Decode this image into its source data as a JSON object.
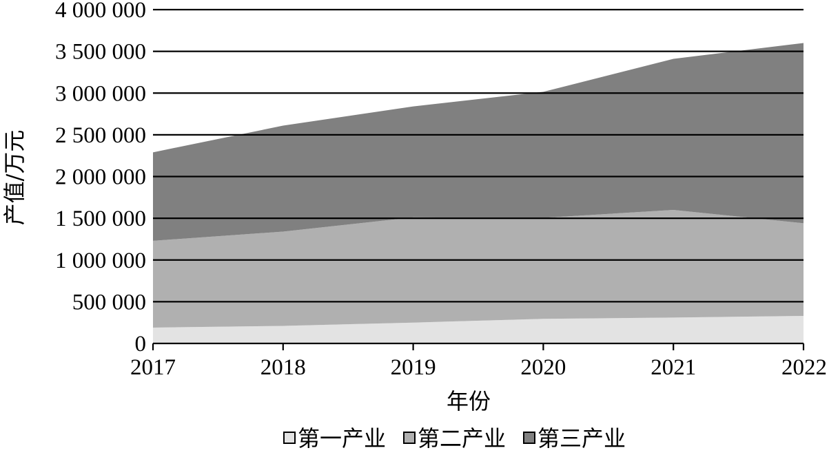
{
  "chart_data": {
    "type": "area",
    "stacked": true,
    "title": "",
    "xlabel": "年份",
    "ylabel": "产值/万元",
    "categories": [
      "2017",
      "2018",
      "2019",
      "2020",
      "2021",
      "2022"
    ],
    "ylim": [
      0,
      4000000
    ],
    "yticks": [
      0,
      500000,
      1000000,
      1500000,
      2000000,
      2500000,
      3000000,
      3500000,
      4000000
    ],
    "ytick_labels": [
      "0",
      "500 000",
      "1 000 000",
      "1 500 000",
      "2 000 000",
      "2 500 000",
      "3 000 000",
      "3 500 000",
      "4 000 000"
    ],
    "grid": "horizontal",
    "legend_position": "bottom",
    "series": [
      {
        "name": "第一产业",
        "color": "#e3e3e3",
        "values": [
          190000,
          210000,
          250000,
          295000,
          310000,
          330000
        ]
      },
      {
        "name": "第二产业",
        "color": "#b0b0b0",
        "values": [
          1040000,
          1130000,
          1260000,
          1210000,
          1290000,
          1110000
        ]
      },
      {
        "name": "第三产业",
        "color": "#808080",
        "values": [
          1060000,
          1270000,
          1330000,
          1510000,
          1810000,
          2160000
        ]
      }
    ]
  }
}
